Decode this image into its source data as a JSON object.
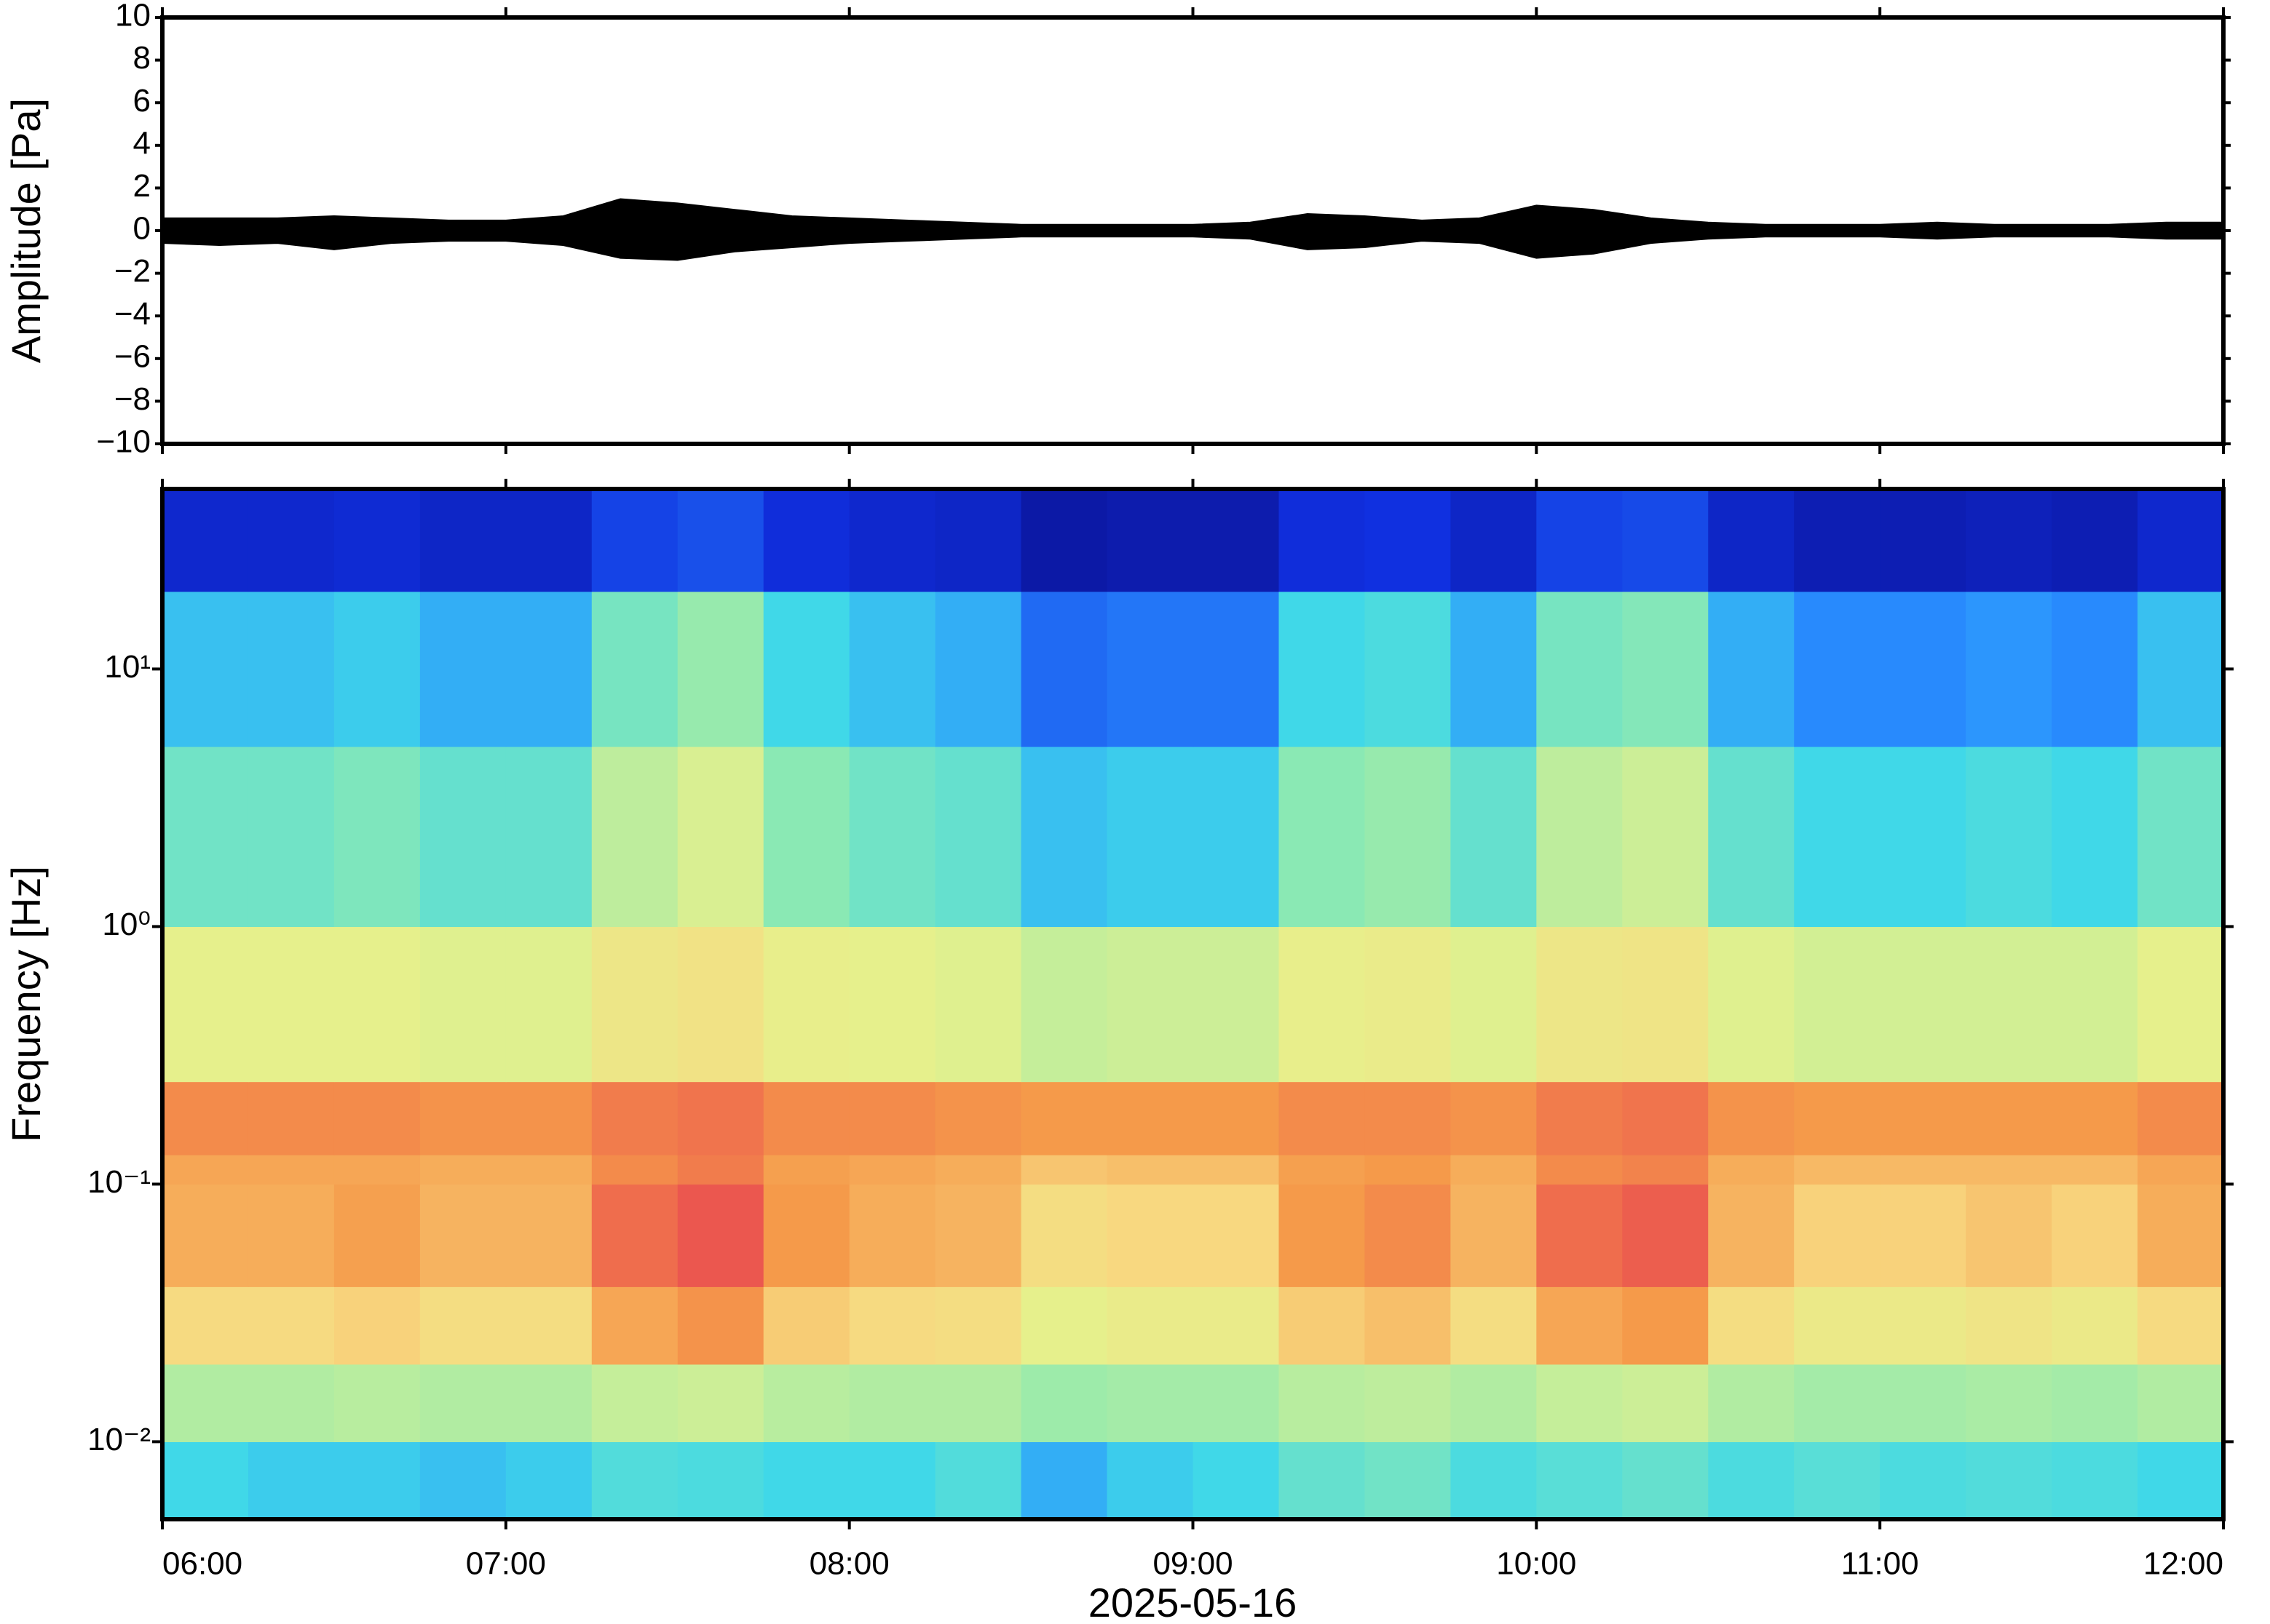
{
  "chart_data": [
    {
      "type": "envelope",
      "ylabel": "Amplitude [Pa]",
      "color": "#000000",
      "xlim": [
        "06:00",
        "12:00"
      ],
      "x": [
        "06:00",
        "06:10",
        "06:20",
        "06:30",
        "06:40",
        "06:50",
        "07:00",
        "07:10",
        "07:20",
        "07:30",
        "07:40",
        "07:50",
        "08:00",
        "08:10",
        "08:20",
        "08:30",
        "08:40",
        "08:50",
        "09:00",
        "09:10",
        "09:20",
        "09:30",
        "09:40",
        "09:50",
        "10:00",
        "10:10",
        "10:20",
        "10:30",
        "10:40",
        "10:50",
        "11:00",
        "11:10",
        "11:20",
        "11:30",
        "11:40",
        "11:50",
        "12:00"
      ],
      "values_max": [
        0.6,
        0.6,
        0.6,
        0.7,
        0.6,
        0.5,
        0.5,
        0.7,
        1.5,
        1.3,
        1.0,
        0.7,
        0.6,
        0.5,
        0.4,
        0.3,
        0.3,
        0.3,
        0.3,
        0.4,
        0.8,
        0.7,
        0.5,
        0.6,
        1.2,
        1.0,
        0.6,
        0.4,
        0.3,
        0.3,
        0.3,
        0.4,
        0.3,
        0.3,
        0.3,
        0.4,
        0.4
      ],
      "values_min": [
        -0.6,
        -0.7,
        -0.6,
        -0.9,
        -0.6,
        -0.5,
        -0.5,
        -0.7,
        -1.3,
        -1.4,
        -1.0,
        -0.8,
        -0.6,
        -0.5,
        -0.4,
        -0.3,
        -0.3,
        -0.3,
        -0.3,
        -0.4,
        -0.9,
        -0.8,
        -0.5,
        -0.6,
        -1.3,
        -1.1,
        -0.6,
        -0.4,
        -0.3,
        -0.3,
        -0.3,
        -0.4,
        -0.3,
        -0.3,
        -0.3,
        -0.4,
        -0.4
      ],
      "ylim": [
        -10,
        10
      ],
      "yticks": [
        {
          "value": -10,
          "label": "−10"
        },
        {
          "value": -8,
          "label": "−8"
        },
        {
          "value": -6,
          "label": "−6"
        },
        {
          "value": -4,
          "label": "−4"
        },
        {
          "value": -2,
          "label": "−2"
        },
        0,
        2,
        4,
        6,
        8,
        10
      ]
    },
    {
      "type": "heatmap",
      "ylabel": "Frequency [Hz]",
      "xlabel": "2025-05-16",
      "log_y": true,
      "xlim": [
        "06:00",
        "12:00"
      ],
      "xticks": [
        "06:00",
        "07:00",
        "08:00",
        "09:00",
        "10:00",
        "11:00",
        "12:00"
      ],
      "ylim": [
        0.005,
        50
      ],
      "yticks": [
        {
          "value": 0.01,
          "label": "10⁻²"
        },
        {
          "value": 0.1,
          "label": "10⁻¹"
        },
        {
          "value": 1,
          "label": "10⁰"
        },
        {
          "value": 10,
          "label": "10¹"
        }
      ],
      "time_bins": [
        "06:00",
        "06:15",
        "06:30",
        "06:45",
        "07:00",
        "07:15",
        "07:30",
        "07:45",
        "08:00",
        "08:15",
        "08:30",
        "08:45",
        "09:00",
        "09:15",
        "09:30",
        "09:45",
        "10:00",
        "10:15",
        "10:30",
        "10:45",
        "11:00",
        "11:15",
        "11:30",
        "11:45",
        "12:00"
      ],
      "freq_bins": [
        0.005,
        0.01,
        0.02,
        0.04,
        0.1,
        0.13,
        0.25,
        1,
        5,
        20,
        50
      ],
      "colormap": [
        [
          0,
          "#0a0a80"
        ],
        [
          0.15,
          "#1030e0"
        ],
        [
          0.3,
          "#2a90ff"
        ],
        [
          0.42,
          "#40d8e8"
        ],
        [
          0.55,
          "#90eab0"
        ],
        [
          0.68,
          "#e6f08c"
        ],
        [
          0.78,
          "#f8d880"
        ],
        [
          0.88,
          "#f59a4a"
        ],
        [
          1,
          "#e84050"
        ]
      ],
      "values": [
        [
          0.42,
          0.4,
          0.4,
          0.38,
          0.4,
          0.45,
          0.44,
          0.42,
          0.42,
          0.45,
          0.35,
          0.4,
          0.42,
          0.48,
          0.5,
          0.44,
          0.46,
          0.48,
          0.44,
          0.46,
          0.44,
          0.45,
          0.44,
          0.42
        ],
        [
          0.6,
          0.6,
          0.61,
          0.6,
          0.6,
          0.63,
          0.64,
          0.61,
          0.6,
          0.6,
          0.57,
          0.58,
          0.58,
          0.61,
          0.62,
          0.6,
          0.63,
          0.64,
          0.6,
          0.58,
          0.58,
          0.59,
          0.58,
          0.6
        ],
        [
          0.77,
          0.77,
          0.79,
          0.76,
          0.76,
          0.86,
          0.89,
          0.8,
          0.77,
          0.76,
          0.68,
          0.7,
          0.7,
          0.8,
          0.82,
          0.76,
          0.86,
          0.88,
          0.76,
          0.71,
          0.71,
          0.73,
          0.71,
          0.77
        ],
        [
          0.85,
          0.85,
          0.87,
          0.84,
          0.84,
          0.94,
          0.97,
          0.88,
          0.85,
          0.84,
          0.76,
          0.78,
          0.78,
          0.88,
          0.9,
          0.84,
          0.94,
          0.96,
          0.84,
          0.79,
          0.79,
          0.81,
          0.79,
          0.85
        ],
        [
          0.86,
          0.86,
          0.86,
          0.85,
          0.85,
          0.9,
          0.92,
          0.87,
          0.86,
          0.85,
          0.81,
          0.82,
          0.82,
          0.87,
          0.88,
          0.85,
          0.9,
          0.91,
          0.85,
          0.83,
          0.83,
          0.83,
          0.83,
          0.86
        ],
        [
          0.9,
          0.9,
          0.9,
          0.89,
          0.89,
          0.92,
          0.93,
          0.9,
          0.9,
          0.89,
          0.88,
          0.88,
          0.88,
          0.9,
          0.9,
          0.89,
          0.92,
          0.93,
          0.89,
          0.88,
          0.88,
          0.88,
          0.88,
          0.9
        ],
        [
          0.68,
          0.68,
          0.68,
          0.67,
          0.67,
          0.72,
          0.74,
          0.69,
          0.68,
          0.67,
          0.63,
          0.64,
          0.64,
          0.69,
          0.7,
          0.67,
          0.72,
          0.73,
          0.67,
          0.65,
          0.65,
          0.65,
          0.65,
          0.68
        ],
        [
          0.5,
          0.5,
          0.52,
          0.48,
          0.48,
          0.62,
          0.66,
          0.54,
          0.5,
          0.48,
          0.38,
          0.4,
          0.4,
          0.54,
          0.56,
          0.48,
          0.62,
          0.64,
          0.48,
          0.42,
          0.42,
          0.44,
          0.42,
          0.5
        ],
        [
          0.38,
          0.38,
          0.4,
          0.35,
          0.35,
          0.51,
          0.56,
          0.42,
          0.38,
          0.35,
          0.24,
          0.26,
          0.26,
          0.42,
          0.44,
          0.35,
          0.51,
          0.53,
          0.35,
          0.29,
          0.29,
          0.31,
          0.29,
          0.38
        ],
        [
          0.12,
          0.12,
          0.13,
          0.11,
          0.11,
          0.18,
          0.2,
          0.14,
          0.12,
          0.11,
          0.06,
          0.07,
          0.07,
          0.14,
          0.15,
          0.11,
          0.18,
          0.19,
          0.11,
          0.08,
          0.08,
          0.09,
          0.08,
          0.12
        ]
      ]
    }
  ]
}
